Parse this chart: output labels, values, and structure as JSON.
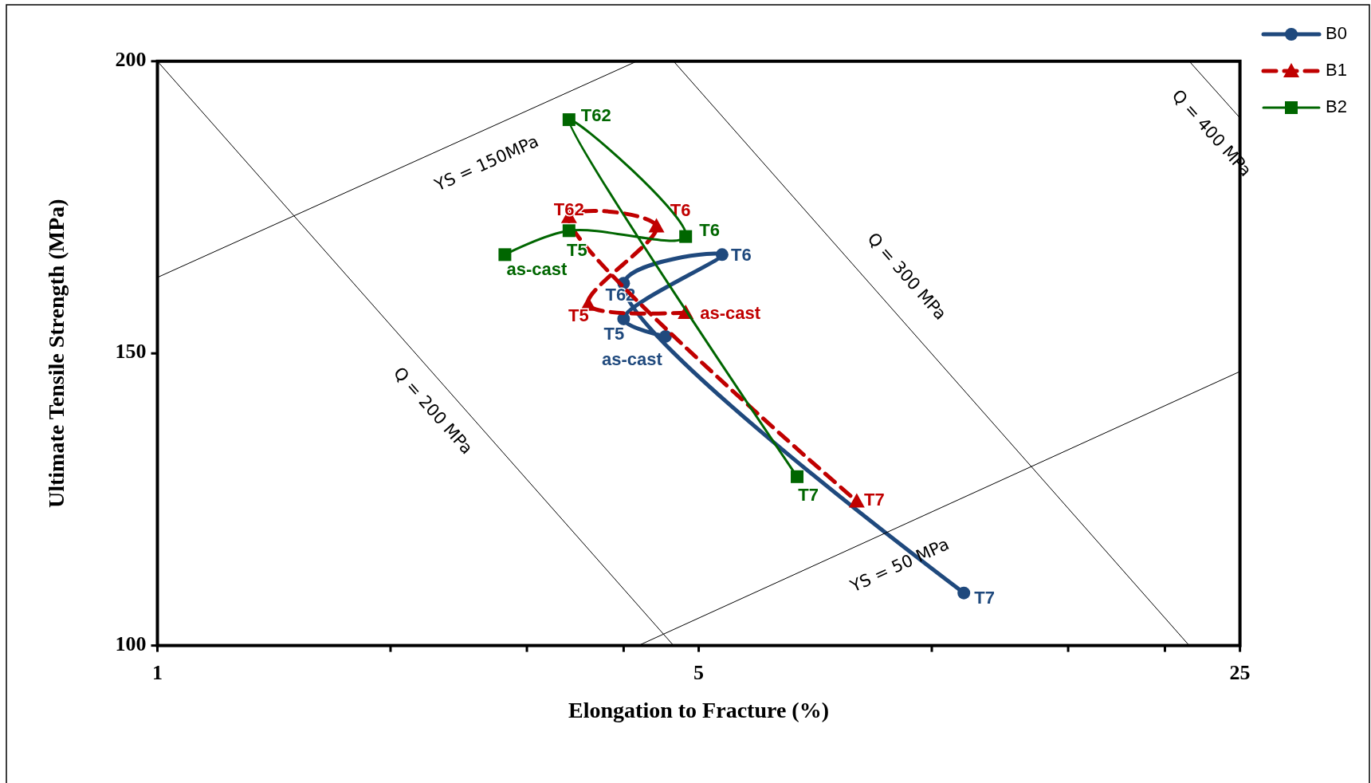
{
  "chart_data": {
    "type": "line",
    "xlabel": "Elongation to Fracture (%)",
    "ylabel": "Ultimate Tensile Strength (MPa)",
    "log": "x",
    "xlim": [
      1,
      25
    ],
    "xticks": [
      1,
      {
        "value": 2,
        "label": null
      },
      {
        "value": 3,
        "label": null
      },
      {
        "value": 4,
        "label": null
      },
      5,
      {
        "value": 10,
        "label": null
      },
      {
        "value": 15,
        "label": null
      },
      {
        "value": 20,
        "label": null
      },
      25
    ],
    "ylim": [
      100,
      200
    ],
    "yticks": [
      100,
      150,
      200
    ],
    "grid": false,
    "legend": "top right",
    "series": [
      {
        "name": "B0",
        "color": "#1f497d",
        "marker": "circle",
        "line_style": "solid",
        "x": [
          4.53,
          4.0,
          5.36,
          4.0,
          11.0
        ],
        "values": [
          152.9,
          155.9,
          166.9,
          162.0,
          109.0
        ],
        "value_labels": [
          "as-cast",
          "T5",
          "T6",
          "T62",
          "T7"
        ]
      },
      {
        "name": "B1",
        "color": "#c00000",
        "marker": "triangle",
        "line_style": "dashed",
        "x": [
          4.81,
          3.6,
          4.41,
          3.4,
          8.0
        ],
        "values": [
          157.0,
          158.4,
          171.8,
          173.4,
          124.7
        ],
        "value_labels": [
          "as-cast",
          "T5",
          "T6",
          "T62",
          "T7"
        ]
      },
      {
        "name": "B2",
        "color": "#006600",
        "marker": "square",
        "line_style": "solid",
        "x": [
          2.81,
          3.4,
          4.81,
          3.4,
          6.7
        ],
        "values": [
          166.9,
          171.0,
          170.0,
          190.0,
          128.9
        ],
        "value_labels": [
          "as-cast",
          "T5",
          "T6",
          "T62",
          "T7"
        ]
      },
      {
        "type": "line",
        "color": "#000000",
        "marker": "none",
        "x": [
          1,
          4.16
        ],
        "values": [
          163,
          200
        ]
      },
      {
        "type": "line",
        "color": "#000000",
        "marker": "none",
        "x": [
          1,
          4.64
        ],
        "values": [
          200,
          100
        ]
      },
      {
        "type": "line",
        "color": "#000000",
        "marker": "none",
        "x": [
          4.64,
          21.5
        ],
        "values": [
          200,
          100
        ]
      },
      {
        "type": "line",
        "color": "#000000",
        "marker": "none",
        "x": [
          21.5,
          25
        ],
        "values": [
          200,
          190.3
        ]
      },
      {
        "type": "line",
        "color": "#000000",
        "marker": "none",
        "x": [
          4.18,
          25
        ],
        "values": [
          100,
          146.9
        ]
      }
    ],
    "annotations": [
      "YS = 150MPa",
      "Q = 200 MPa",
      "Q = 300 MPa",
      "Q = 400 MPa",
      "YS = 50 MPa"
    ]
  }
}
